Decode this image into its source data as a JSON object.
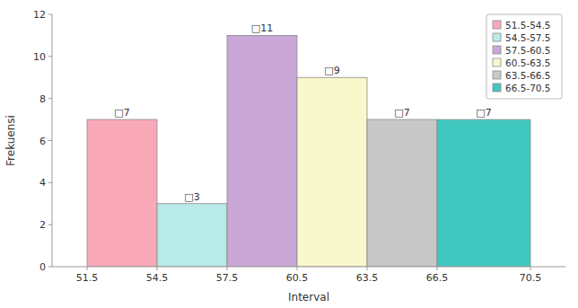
{
  "chart_data": {
    "type": "histogram",
    "x_label": "Interval",
    "y_label": "Frekuensi",
    "bins": [
      51.5,
      54.5,
      57.5,
      60.5,
      63.5,
      66.5,
      70.5
    ],
    "values": [
      7,
      3,
      11,
      9,
      7,
      7
    ],
    "value_labels": [
      "□7",
      "□3",
      "□11",
      "□9",
      "□7",
      "□7"
    ],
    "categories": [
      "51.5-54.5",
      "54.5-57.5",
      "57.5-60.5",
      "60.5-63.5",
      "63.5-66.5",
      "66.5-70.5"
    ],
    "colors": [
      "#F9A8B8",
      "#B8EAE8",
      "#C9A8D8",
      "#F8F8CC",
      "#C8C8C8",
      "#40C8C0"
    ],
    "xlim": [
      50,
      72
    ],
    "xticks": [
      51.5,
      54.5,
      57.5,
      60.5,
      63.5,
      66.5,
      70.5
    ],
    "ylim": [
      0,
      12
    ],
    "yticks": [
      0,
      2,
      4,
      6,
      8,
      10,
      12
    ],
    "grid": false,
    "legend": "upper right",
    "data_labels": true
  }
}
